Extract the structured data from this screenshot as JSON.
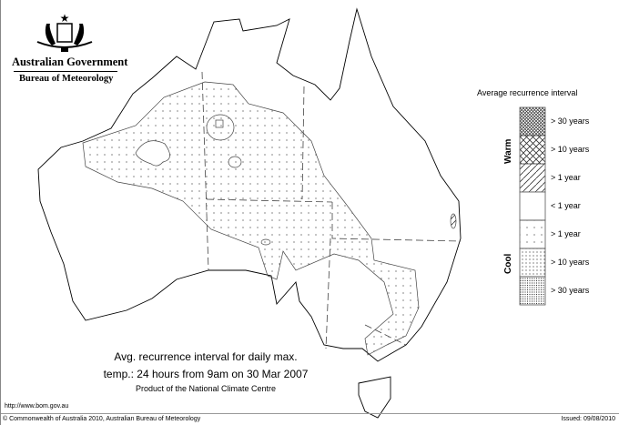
{
  "header": {
    "government": "Australian Government",
    "agency": "Bureau of Meteorology",
    "logo": "commonwealth-coat-of-arms"
  },
  "map": {
    "title_line1": "Avg. recurrence interval for daily max.",
    "title_line2": "temp.: 24 hours from 9am on 30 Mar 2007",
    "credit": "Product of the National Climate Centre"
  },
  "legend": {
    "title": "Average recurrence interval",
    "warm_label": "Warm",
    "cool_label": "Cool",
    "items": [
      {
        "label": "> 30 years",
        "pattern": "dense-crosshatch"
      },
      {
        "label": "> 10 years",
        "pattern": "crosshatch"
      },
      {
        "label": "> 1 year",
        "pattern": "diagonal-hatch"
      },
      {
        "label": "< 1 year",
        "pattern": "blank"
      },
      {
        "label": "> 1 year",
        "pattern": "sparse-dots"
      },
      {
        "label": "> 10 years",
        "pattern": "medium-dots"
      },
      {
        "label": "> 30 years",
        "pattern": "dense-dots"
      }
    ]
  },
  "footer": {
    "url": "http://www.bom.gov.au",
    "copyright": "© Commonwealth of Australia 2010, Australian Bureau of Meteorology",
    "issued": "Issued: 09/08/2010"
  }
}
